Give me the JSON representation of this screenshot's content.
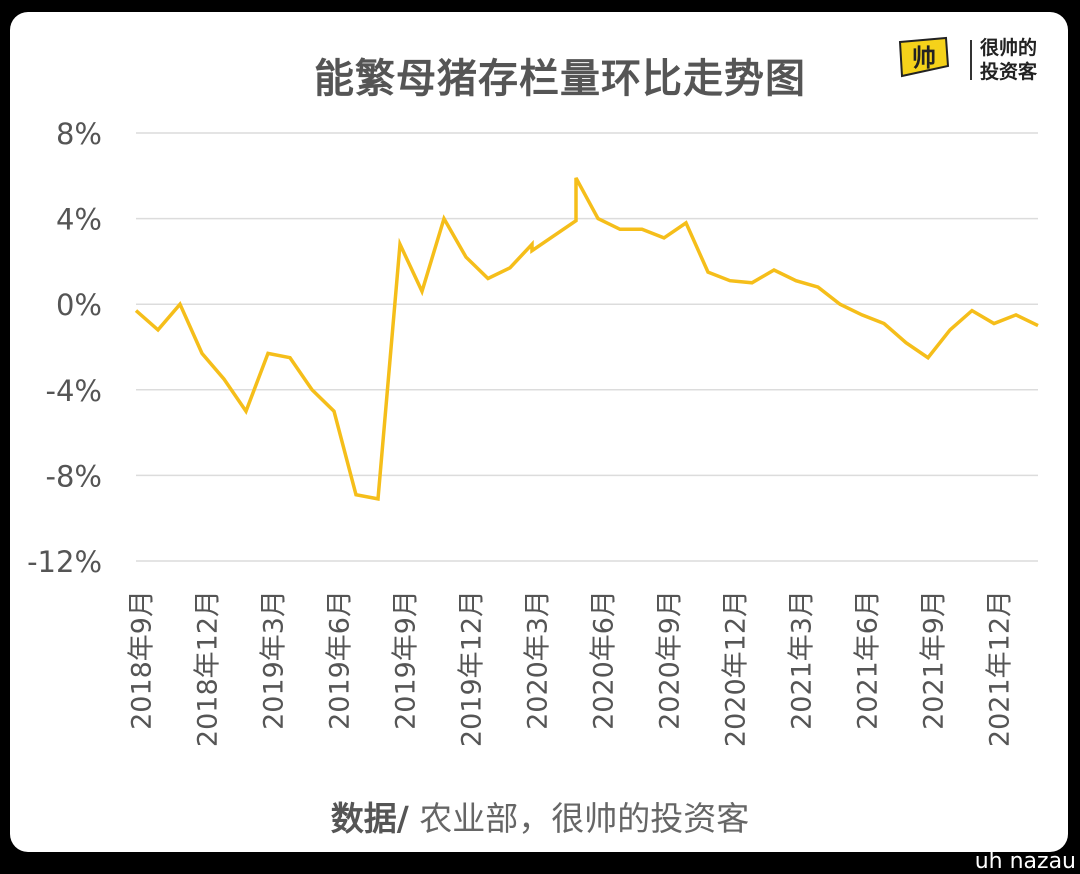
{
  "title": "能繁母猪存栏量环比走势图",
  "logo": {
    "mark": "帅",
    "line1": "很帅的",
    "line2": "投资客"
  },
  "source": {
    "prefix": "数据/",
    "text": " 农业部，很帅的投资客"
  },
  "watermark": "uh nazau",
  "colors": {
    "line": "#F5BE1A",
    "grid": "#DCDCDC",
    "tick_text": "#555555",
    "logo": "#F5D21A"
  },
  "chart_data": {
    "type": "line",
    "title": "能繁母猪存栏量环比走势图",
    "xlabel": "",
    "ylabel": "",
    "ylim": [
      -12,
      8
    ],
    "yticks": [
      8,
      4,
      0,
      -4,
      -8,
      -12
    ],
    "ytick_labels": [
      "8%",
      "4%",
      "0%",
      "-4%",
      "-8%",
      "-12%"
    ],
    "grid": true,
    "xtick_labels": [
      "2018年9月",
      "2018年12月",
      "2019年3月",
      "2019年6月",
      "2019年9月",
      "2019年12月",
      "2020年3月",
      "2020年6月",
      "2020年9月",
      "2020年12月",
      "2021年3月",
      "2021年6月",
      "2021年9月",
      "2021年12月"
    ],
    "series": [
      {
        "points": [
          [
            0,
            -0.3
          ],
          [
            1,
            -1.2
          ],
          [
            2,
            0.0
          ],
          [
            3,
            -2.3
          ],
          [
            4,
            -3.5
          ],
          [
            5,
            -5.0
          ],
          [
            6,
            -2.3
          ],
          [
            7,
            -2.5
          ],
          [
            8,
            -4.0
          ],
          [
            9,
            -5.0
          ],
          [
            10,
            -8.9
          ],
          [
            11,
            -9.1
          ],
          [
            12,
            2.8
          ],
          [
            13,
            0.6
          ],
          [
            14,
            4.0
          ],
          [
            15,
            2.2
          ],
          [
            16,
            1.2
          ],
          [
            17,
            1.7
          ],
          [
            18,
            2.8
          ],
          [
            18,
            2.5
          ],
          [
            19,
            3.2
          ],
          [
            20,
            3.9
          ],
          [
            20,
            5.9
          ],
          [
            21,
            4.0
          ],
          [
            22,
            3.5
          ],
          [
            23,
            3.5
          ],
          [
            24,
            3.1
          ],
          [
            25,
            3.8
          ],
          [
            26,
            1.5
          ],
          [
            27,
            1.1
          ],
          [
            28,
            1.0
          ],
          [
            29,
            1.6
          ],
          [
            30,
            1.1
          ],
          [
            31,
            0.8
          ],
          [
            32,
            0.0
          ],
          [
            33,
            -0.5
          ],
          [
            34,
            -0.9
          ],
          [
            35,
            -1.8
          ],
          [
            36,
            -2.5
          ],
          [
            37,
            -1.2
          ],
          [
            38,
            -0.3
          ],
          [
            39,
            -0.9
          ],
          [
            40,
            -0.5
          ],
          [
            41,
            -1.0
          ]
        ]
      }
    ]
  }
}
